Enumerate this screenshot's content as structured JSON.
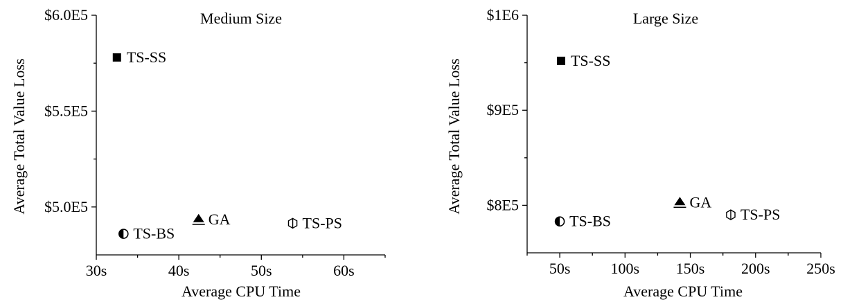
{
  "chart_data": [
    {
      "type": "scatter",
      "title": "Medium Size",
      "xlabel": "Average CPU Time",
      "ylabel": "Average Total Value Loss",
      "xlim": [
        30,
        65
      ],
      "ylim": [
        475000,
        600000
      ],
      "x_ticks": [
        {
          "value": 30,
          "label": "30s"
        },
        {
          "value": 35,
          "label": ""
        },
        {
          "value": 40,
          "label": "40s"
        },
        {
          "value": 45,
          "label": ""
        },
        {
          "value": 50,
          "label": "50s"
        },
        {
          "value": 55,
          "label": ""
        },
        {
          "value": 60,
          "label": "60s"
        },
        {
          "value": 65,
          "label": ""
        }
      ],
      "y_ticks": [
        {
          "value": 500000,
          "label": "$5.0E5"
        },
        {
          "value": 525000,
          "label": ""
        },
        {
          "value": 550000,
          "label": "$5.5E5"
        },
        {
          "value": 575000,
          "label": ""
        },
        {
          "value": 600000,
          "label": "$6.0E5"
        }
      ],
      "points": [
        {
          "label": "TS-SS",
          "x": 32.5,
          "y": 578000,
          "marker": "filled-square"
        },
        {
          "label": "TS-BS",
          "x": 33.3,
          "y": 486000,
          "marker": "half-circle"
        },
        {
          "label": "GA",
          "x": 42.4,
          "y": 493500,
          "marker": "triangle-bar"
        },
        {
          "label": "TS-PS",
          "x": 53.8,
          "y": 491500,
          "marker": "hexagon-line"
        }
      ],
      "grid": false
    },
    {
      "type": "scatter",
      "title": "Large Size",
      "xlabel": "Average CPU Time",
      "ylabel": "Average Total Value Loss",
      "xlim": [
        25,
        250
      ],
      "ylim": [
        750000,
        1000000
      ],
      "x_ticks": [
        {
          "value": 25,
          "label": ""
        },
        {
          "value": 50,
          "label": "50s"
        },
        {
          "value": 75,
          "label": ""
        },
        {
          "value": 100,
          "label": "100s"
        },
        {
          "value": 125,
          "label": ""
        },
        {
          "value": 150,
          "label": "150s"
        },
        {
          "value": 175,
          "label": ""
        },
        {
          "value": 200,
          "label": "200s"
        },
        {
          "value": 225,
          "label": ""
        },
        {
          "value": 250,
          "label": "250s"
        }
      ],
      "y_ticks": [
        {
          "value": 800000,
          "label": "$8E5"
        },
        {
          "value": 850000,
          "label": ""
        },
        {
          "value": 900000,
          "label": "$9E5"
        },
        {
          "value": 950000,
          "label": ""
        },
        {
          "value": 1000000,
          "label": "$1E6"
        }
      ],
      "points": [
        {
          "label": "TS-SS",
          "x": 51,
          "y": 952000,
          "marker": "filled-square"
        },
        {
          "label": "TS-BS",
          "x": 50,
          "y": 783000,
          "marker": "half-circle"
        },
        {
          "label": "GA",
          "x": 142,
          "y": 803000,
          "marker": "triangle-bar"
        },
        {
          "label": "TS-PS",
          "x": 181,
          "y": 790000,
          "marker": "hexagon-line"
        }
      ],
      "grid": false
    }
  ]
}
